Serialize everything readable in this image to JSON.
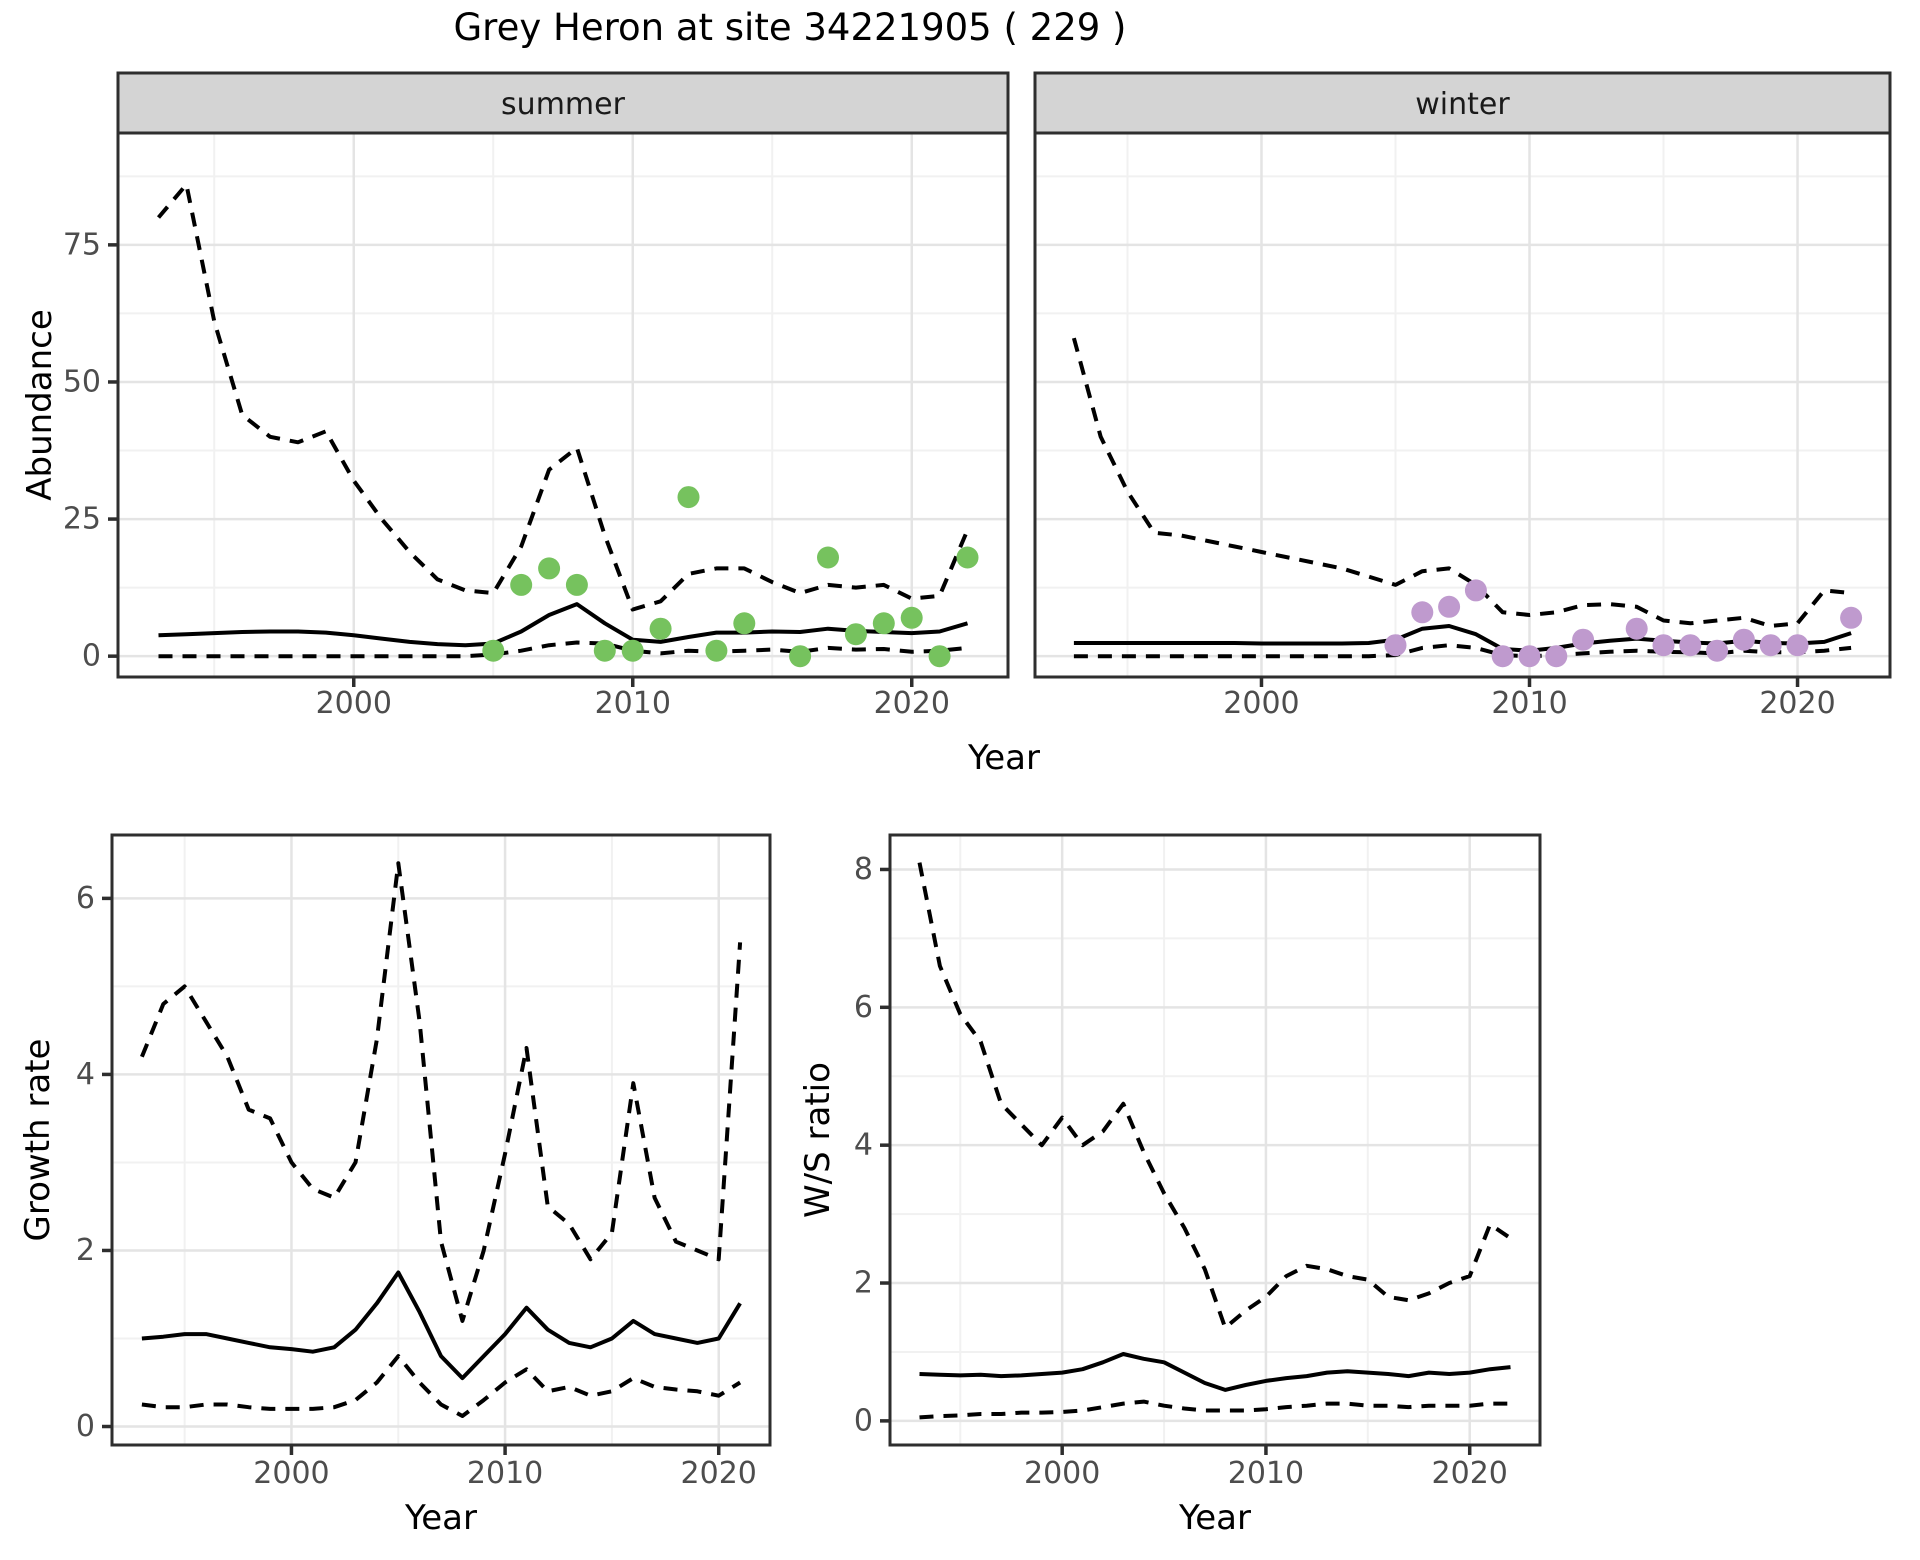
{
  "title": "Grey Heron at site 34221905 ( 229 )",
  "colors": {
    "summer_points": "#76c25e",
    "winter_points": "#bf9ace",
    "line": "#000000",
    "strip_bg": "#d4d4d4",
    "panel_border": "#2e2e2e",
    "grid_major": "#e4e4e4",
    "grid_minor": "#f1f1f1",
    "axis_text": "#4d4d4d"
  },
  "chart_data": [
    {
      "id": "abundance_summer",
      "type": "line",
      "facet": "summer",
      "xlabel": "Year",
      "ylabel": "Abundance",
      "xlim": [
        1991.55,
        2023.45
      ],
      "ylim": [
        -3.8,
        95.4
      ],
      "xticks": [
        2000,
        2010,
        2020
      ],
      "xminor": [
        1995,
        2005,
        2015
      ],
      "yticks": [
        0,
        25,
        50,
        75
      ],
      "yminor": [
        12.5,
        37.5,
        62.5,
        87.5
      ],
      "grid": true,
      "legend": "none",
      "x": [
        1993,
        1994,
        1995,
        1996,
        1997,
        1998,
        1999,
        2000,
        2001,
        2002,
        2003,
        2004,
        2005,
        2006,
        2007,
        2008,
        2009,
        2010,
        2011,
        2012,
        2013,
        2014,
        2015,
        2016,
        2017,
        2018,
        2019,
        2020,
        2021,
        2022
      ],
      "series": [
        {
          "name": "upper_95ci",
          "style": "dashed",
          "values": [
            80,
            86,
            61,
            44,
            40,
            39,
            41,
            32,
            25,
            19,
            14,
            12,
            11.5,
            20,
            34,
            38,
            22,
            8.5,
            10,
            15,
            16,
            16,
            13.5,
            11.5,
            13,
            12.5,
            13,
            10.5,
            11,
            23
          ]
        },
        {
          "name": "median",
          "style": "solid",
          "values": [
            3.8,
            4.0,
            4.2,
            4.4,
            4.5,
            4.5,
            4.3,
            3.8,
            3.2,
            2.6,
            2.2,
            2.0,
            2.3,
            4.5,
            7.5,
            9.5,
            6.0,
            3.0,
            2.6,
            3.5,
            4.3,
            4.3,
            4.5,
            4.4,
            5.0,
            4.6,
            4.4,
            4.2,
            4.5,
            6.0
          ]
        },
        {
          "name": "lower_95ci",
          "style": "dashed",
          "values": [
            0,
            0,
            0,
            0,
            0,
            0,
            0,
            0,
            0,
            0,
            0,
            0,
            0.3,
            1,
            2,
            2.5,
            2.3,
            1,
            0.5,
            1,
            0.8,
            1,
            1.2,
            0.8,
            1.5,
            1.2,
            1.3,
            0.8,
            1,
            1.5
          ]
        }
      ],
      "observed_points": {
        "color": "#76c25e",
        "x": [
          2005,
          2006,
          2007,
          2008,
          2009,
          2010,
          2011,
          2012,
          2013,
          2014,
          2016,
          2017,
          2018,
          2019,
          2020,
          2021,
          2022
        ],
        "y": [
          1,
          13,
          16,
          13,
          1,
          1,
          5,
          29,
          1,
          6,
          0,
          18,
          4,
          6,
          7,
          0,
          18
        ]
      }
    },
    {
      "id": "abundance_winter",
      "type": "line",
      "facet": "winter",
      "xlabel": "Year",
      "ylabel": "Abundance",
      "xlim": [
        1991.55,
        2023.45
      ],
      "ylim": [
        -3.8,
        95.4
      ],
      "xticks": [
        2000,
        2010,
        2020
      ],
      "xminor": [
        1995,
        2005,
        2015
      ],
      "yticks": [
        0,
        25,
        50,
        75
      ],
      "yminor": [
        12.5,
        37.5,
        62.5,
        87.5
      ],
      "grid": true,
      "legend": "none",
      "x": [
        1993,
        1994,
        1995,
        1996,
        1997,
        1998,
        1999,
        2000,
        2001,
        2002,
        2003,
        2004,
        2005,
        2006,
        2007,
        2008,
        2009,
        2010,
        2011,
        2012,
        2013,
        2014,
        2015,
        2016,
        2017,
        2018,
        2019,
        2020,
        2021,
        2022
      ],
      "series": [
        {
          "name": "upper_95ci",
          "style": "dashed",
          "values": [
            58,
            40,
            30,
            22.5,
            22,
            21,
            20,
            19,
            18,
            17,
            16,
            14.5,
            13,
            15.5,
            16,
            13,
            8,
            7.5,
            8,
            9.3,
            9.5,
            9,
            6.5,
            6,
            6.5,
            7,
            5.5,
            6,
            12,
            11.5
          ]
        },
        {
          "name": "median",
          "style": "solid",
          "values": [
            2.4,
            2.4,
            2.4,
            2.4,
            2.4,
            2.4,
            2.4,
            2.3,
            2.3,
            2.3,
            2.3,
            2.4,
            3,
            5,
            5.5,
            4,
            1.3,
            1,
            1.5,
            2.3,
            2.8,
            3.2,
            2.8,
            2.5,
            2.3,
            2.8,
            2.4,
            2.3,
            2.6,
            4.2
          ]
        },
        {
          "name": "lower_95ci",
          "style": "dashed",
          "values": [
            0,
            0,
            0,
            0,
            0,
            0,
            0,
            0,
            0,
            0,
            0,
            0,
            0.2,
            1.5,
            2,
            1.5,
            0.2,
            0,
            0.2,
            0.5,
            0.8,
            1,
            0.8,
            0.7,
            0.5,
            1,
            0.7,
            0.7,
            1,
            1.5
          ]
        }
      ],
      "observed_points": {
        "color": "#bf9ace",
        "x": [
          2005,
          2006,
          2007,
          2008,
          2009,
          2010,
          2011,
          2012,
          2014,
          2015,
          2016,
          2017,
          2018,
          2019,
          2020,
          2022
        ],
        "y": [
          2,
          8,
          9,
          12,
          0,
          0,
          0,
          3,
          5,
          2,
          2,
          1,
          3,
          2,
          2,
          7
        ]
      }
    },
    {
      "id": "growth_rate",
      "type": "line",
      "facet": "",
      "xlabel": "Year",
      "ylabel": "Growth rate",
      "xlim": [
        1991.6,
        2022.4
      ],
      "ylim": [
        -0.21,
        6.72
      ],
      "xticks": [
        2000,
        2010,
        2020
      ],
      "xminor": [
        1995,
        2005,
        2015
      ],
      "yticks": [
        0,
        2,
        4,
        6
      ],
      "yminor": [
        1,
        3,
        5
      ],
      "grid": true,
      "legend": "none",
      "x": [
        1993,
        1994,
        1995,
        1996,
        1997,
        1998,
        1999,
        2000,
        2001,
        2002,
        2003,
        2004,
        2005,
        2006,
        2007,
        2008,
        2009,
        2010,
        2011,
        2012,
        2013,
        2014,
        2015,
        2016,
        2017,
        2018,
        2019,
        2020,
        2021
      ],
      "series": [
        {
          "name": "upper_95ci",
          "style": "dashed",
          "values": [
            4.2,
            4.8,
            5.0,
            4.6,
            4.2,
            3.6,
            3.5,
            3.0,
            2.7,
            2.6,
            3.0,
            4.4,
            6.4,
            4.6,
            2.1,
            1.2,
            2.0,
            3.1,
            4.3,
            2.5,
            2.3,
            1.9,
            2.2,
            3.9,
            2.6,
            2.1,
            2.0,
            1.9,
            5.5
          ]
        },
        {
          "name": "median",
          "style": "solid",
          "values": [
            1.0,
            1.02,
            1.05,
            1.05,
            1.0,
            0.95,
            0.9,
            0.88,
            0.85,
            0.9,
            1.1,
            1.4,
            1.75,
            1.3,
            0.8,
            0.55,
            0.8,
            1.05,
            1.35,
            1.1,
            0.95,
            0.9,
            1.0,
            1.2,
            1.05,
            1.0,
            0.95,
            1.0,
            1.4
          ]
        },
        {
          "name": "lower_95ci",
          "style": "dashed",
          "values": [
            0.25,
            0.22,
            0.22,
            0.25,
            0.25,
            0.22,
            0.2,
            0.2,
            0.2,
            0.22,
            0.3,
            0.5,
            0.8,
            0.5,
            0.25,
            0.12,
            0.3,
            0.5,
            0.65,
            0.4,
            0.45,
            0.35,
            0.4,
            0.55,
            0.45,
            0.42,
            0.4,
            0.35,
            0.5
          ]
        }
      ],
      "observed_points": {
        "color": "",
        "x": [],
        "y": []
      }
    },
    {
      "id": "ws_ratio",
      "type": "line",
      "facet": "",
      "xlabel": "Year",
      "ylabel": "W/S ratio",
      "xlim": [
        1991.55,
        2023.45
      ],
      "ylim": [
        -0.35,
        8.5
      ],
      "xticks": [
        2000,
        2010,
        2020
      ],
      "xminor": [
        1995,
        2005,
        2015
      ],
      "yticks": [
        0,
        2,
        4,
        6,
        8
      ],
      "yminor": [
        1,
        3,
        5,
        7
      ],
      "grid": true,
      "legend": "none",
      "x": [
        1993,
        1994,
        1995,
        1996,
        1997,
        1998,
        1999,
        2000,
        2001,
        2002,
        2003,
        2004,
        2005,
        2006,
        2007,
        2008,
        2009,
        2010,
        2011,
        2012,
        2013,
        2014,
        2015,
        2016,
        2017,
        2018,
        2019,
        2020,
        2021,
        2022
      ],
      "series": [
        {
          "name": "upper_95ci",
          "style": "dashed",
          "values": [
            8.1,
            6.6,
            5.9,
            5.5,
            4.6,
            4.3,
            4.0,
            4.4,
            4.0,
            4.2,
            4.6,
            3.9,
            3.3,
            2.8,
            2.2,
            1.35,
            1.6,
            1.8,
            2.1,
            2.25,
            2.2,
            2.1,
            2.05,
            1.8,
            1.75,
            1.85,
            2.0,
            2.1,
            2.85,
            2.65
          ]
        },
        {
          "name": "median",
          "style": "solid",
          "values": [
            0.68,
            0.67,
            0.66,
            0.67,
            0.65,
            0.66,
            0.68,
            0.7,
            0.75,
            0.85,
            0.97,
            0.9,
            0.85,
            0.7,
            0.55,
            0.45,
            0.52,
            0.58,
            0.62,
            0.65,
            0.7,
            0.72,
            0.7,
            0.68,
            0.65,
            0.7,
            0.68,
            0.7,
            0.75,
            0.78
          ]
        },
        {
          "name": "lower_95ci",
          "style": "dashed",
          "values": [
            0.05,
            0.07,
            0.08,
            0.1,
            0.1,
            0.12,
            0.12,
            0.13,
            0.15,
            0.2,
            0.25,
            0.28,
            0.22,
            0.18,
            0.15,
            0.15,
            0.15,
            0.17,
            0.2,
            0.22,
            0.25,
            0.25,
            0.22,
            0.22,
            0.2,
            0.22,
            0.22,
            0.22,
            0.25,
            0.25
          ]
        }
      ],
      "observed_points": {
        "color": "",
        "x": [],
        "y": []
      }
    }
  ]
}
